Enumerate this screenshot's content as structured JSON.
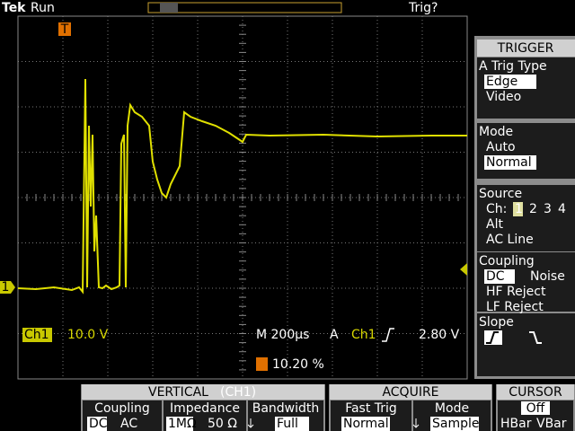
{
  "header": {
    "brand": "Tek",
    "status": "Run",
    "trigger_state": "Trig?"
  },
  "markers": {
    "trigger": "T",
    "channel": "1"
  },
  "readout": {
    "channel": "Ch1",
    "scale": "10.0 V",
    "timebase": "M 200µs",
    "trigger_prefix": "A",
    "trigger_channel": "Ch1",
    "trigger_level": "2.80 V",
    "trigger_position": "10.20 %"
  },
  "side_menu": {
    "title": "TRIGGER",
    "sections": [
      {
        "label": "A Trig Type",
        "options": [
          "Edge",
          "Video"
        ]
      },
      {
        "label": "Mode",
        "options": [
          "Auto",
          "Normal"
        ]
      },
      {
        "label": "Source",
        "channel_label": "Ch:",
        "channels": [
          "1",
          "2",
          "3",
          "4"
        ],
        "options": [
          "Alt",
          "AC Line"
        ]
      },
      {
        "label": "Coupling",
        "options": [
          "DC",
          "Noise",
          "HF Reject",
          "LF Reject"
        ]
      },
      {
        "label": "Slope"
      }
    ]
  },
  "bottom_menu": {
    "vertical": {
      "title": "VERTICAL",
      "channel": "(CH1)",
      "columns": [
        {
          "label": "Coupling",
          "options": [
            "DC",
            "AC"
          ]
        },
        {
          "label": "Impedance",
          "options": [
            "1MΩ",
            "50 Ω"
          ]
        },
        {
          "label": "Bandwidth",
          "options": [
            "Full"
          ]
        }
      ]
    },
    "acquire": {
      "title": "ACQUIRE",
      "columns": [
        {
          "label": "Fast Trig",
          "options": [
            "Normal"
          ]
        },
        {
          "label": "Mode",
          "options": [
            "Sample"
          ]
        }
      ]
    },
    "cursor": {
      "title": "CURSOR",
      "options": [
        "Off",
        "HBar",
        "VBar"
      ]
    }
  }
}
